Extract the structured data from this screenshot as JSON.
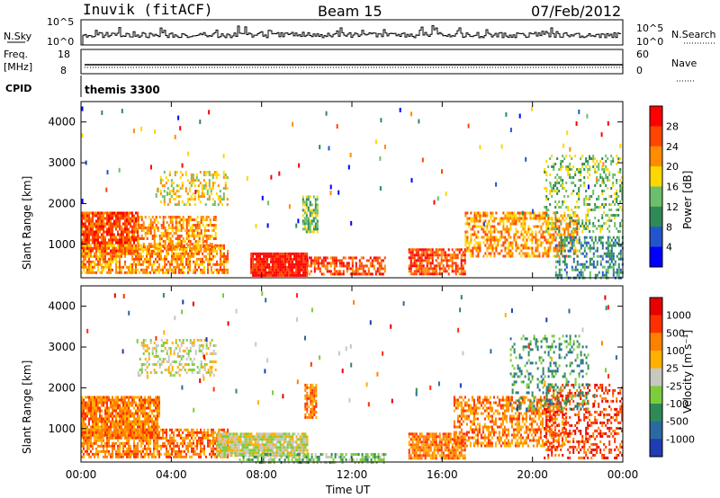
{
  "header": {
    "station": "Inuvik (fitACF)",
    "beam": "Beam 15",
    "date": "07/Feb/2012"
  },
  "strip_labels": {
    "nsky": "N.Sky",
    "nsearch": "N.Search",
    "freq": "Freq.",
    "freq_unit": "[MHz]",
    "nave": "Nave",
    "cpid": "CPID",
    "cpid_value": "themis 3300",
    "nsky_ticks": [
      "10^5",
      "10^0"
    ],
    "nsearch_ticks": [
      "10^5",
      "10^0"
    ],
    "freq_ticks": [
      "18",
      "8"
    ],
    "nave_ticks": [
      "60",
      "0"
    ]
  },
  "colors": {
    "power": [
      "#0000ff",
      "#2255cc",
      "#2e8b57",
      "#6bbf6b",
      "#ffd700",
      "#ff8c00",
      "#ff4500",
      "#ff0000"
    ],
    "velocity": [
      "#1e3cb4",
      "#2a6aa0",
      "#2e8b57",
      "#7ccd3c",
      "#c8c8c0",
      "#ffb000",
      "#ff8000",
      "#ff3000",
      "#e60000"
    ]
  },
  "chart_data": [
    {
      "type": "heatmap",
      "name": "power-panel",
      "ylabel": "Slant Range [km]",
      "xlabel": "Time UT",
      "xticks": [
        "00:00",
        "04:00",
        "08:00",
        "12:00",
        "16:00",
        "20:00",
        "00:00"
      ],
      "yticks": [
        "1000",
        "2000",
        "3000",
        "4000"
      ],
      "xlim_hours": [
        0,
        24
      ],
      "ylim_km": [
        180,
        4500
      ],
      "colorbar": {
        "label": "Power [dB]",
        "ticks": [
          "28",
          "24",
          "20",
          "16",
          "12",
          "8",
          "4"
        ]
      },
      "regions": [
        {
          "t0": 0.0,
          "t1": 2.5,
          "r0": 800,
          "r1": 1800,
          "band": 6,
          "density": 0.85
        },
        {
          "t0": 0.0,
          "t1": 6.5,
          "r0": 300,
          "r1": 1000,
          "band": 5,
          "density": 0.7
        },
        {
          "t0": 2.5,
          "t1": 6.0,
          "r0": 900,
          "r1": 1700,
          "band": 5,
          "density": 0.6
        },
        {
          "t0": 3.5,
          "t1": 6.5,
          "r0": 2000,
          "r1": 2800,
          "band": 4,
          "density": 0.35
        },
        {
          "t0": 7.5,
          "t1": 10.0,
          "r0": 250,
          "r1": 800,
          "band": 7,
          "density": 0.95
        },
        {
          "t0": 10.0,
          "t1": 13.5,
          "r0": 250,
          "r1": 700,
          "band": 6,
          "density": 0.6
        },
        {
          "t0": 9.8,
          "t1": 10.5,
          "r0": 1300,
          "r1": 2200,
          "band": 3,
          "density": 0.7
        },
        {
          "t0": 14.5,
          "t1": 17.0,
          "r0": 300,
          "r1": 900,
          "band": 6,
          "density": 0.75
        },
        {
          "t0": 17.0,
          "t1": 22.0,
          "r0": 700,
          "r1": 1800,
          "band": 5,
          "density": 0.55
        },
        {
          "t0": 20.5,
          "t1": 24.0,
          "r0": 1300,
          "r1": 3200,
          "band": 3,
          "density": 0.3
        },
        {
          "t0": 21.0,
          "t1": 24.0,
          "r0": 200,
          "r1": 1200,
          "band": 2,
          "density": 0.45
        }
      ]
    },
    {
      "type": "heatmap",
      "name": "velocity-panel",
      "ylabel": "Slant Range [km]",
      "xlabel": "Time UT",
      "xticks": [
        "00:00",
        "04:00",
        "08:00",
        "12:00",
        "16:00",
        "20:00",
        "00:00"
      ],
      "yticks": [
        "1000",
        "2000",
        "3000",
        "4000"
      ],
      "xlim_hours": [
        0,
        24
      ],
      "ylim_km": [
        180,
        4500
      ],
      "colorbar": {
        "label": "Velocity [m s⁻¹]",
        "ticks": [
          "1000",
          "500",
          "100",
          "25",
          "-25",
          "-100",
          "-500",
          "-1000"
        ]
      },
      "regions": [
        {
          "t0": 0.0,
          "t1": 3.5,
          "r0": 800,
          "r1": 1800,
          "band": 6,
          "density": 0.85
        },
        {
          "t0": 0.0,
          "t1": 6.5,
          "r0": 300,
          "r1": 1000,
          "band": 6,
          "density": 0.65
        },
        {
          "t0": 2.5,
          "t1": 6.0,
          "r0": 2300,
          "r1": 3200,
          "band": 4,
          "density": 0.35
        },
        {
          "t0": 6.0,
          "t1": 10.0,
          "r0": 350,
          "r1": 900,
          "band": 4,
          "density": 0.9
        },
        {
          "t0": 7.0,
          "t1": 13.5,
          "r0": 200,
          "r1": 400,
          "band": 3,
          "density": 0.5
        },
        {
          "t0": 9.9,
          "t1": 10.4,
          "r0": 1300,
          "r1": 2100,
          "band": 6,
          "density": 0.8
        },
        {
          "t0": 14.5,
          "t1": 17.0,
          "r0": 300,
          "r1": 900,
          "band": 6,
          "density": 0.8
        },
        {
          "t0": 16.5,
          "t1": 21.5,
          "r0": 600,
          "r1": 1800,
          "band": 6,
          "density": 0.55
        },
        {
          "t0": 20.5,
          "t1": 24.0,
          "r0": 300,
          "r1": 2100,
          "band": 7,
          "density": 0.35
        },
        {
          "t0": 19.0,
          "t1": 22.5,
          "r0": 1500,
          "r1": 3300,
          "band": 2,
          "density": 0.25
        }
      ]
    }
  ]
}
